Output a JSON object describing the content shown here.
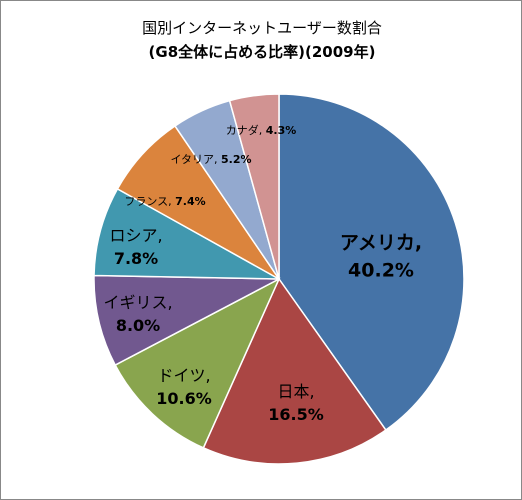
{
  "chart_data": {
    "type": "pie",
    "title": "国別インターネットユーザー数割合",
    "subtitle": "(G8全体に占める比率)(2009年)",
    "slices": [
      {
        "name": "アメリカ",
        "value": 40.2,
        "value_label": "40.2%",
        "color": "#4573A7"
      },
      {
        "name": "日本",
        "value": 16.5,
        "value_label": "16.5%",
        "color": "#AA4644"
      },
      {
        "name": "ドイツ",
        "value": 10.6,
        "value_label": "10.6%",
        "color": "#89A54E"
      },
      {
        "name": "イギリス",
        "value": 8.0,
        "value_label": "8.0%",
        "color": "#71588F"
      },
      {
        "name": "ロシア",
        "value": 7.8,
        "value_label": "7.8%",
        "color": "#4198AF"
      },
      {
        "name": "フランス",
        "value": 7.4,
        "value_label": "7.4%",
        "color": "#DB843D"
      },
      {
        "name": "イタリア",
        "value": 5.2,
        "value_label": "5.2%",
        "color": "#93A9CF"
      },
      {
        "name": "カナダ",
        "value": 4.3,
        "value_label": "4.3%",
        "color": "#D19392"
      }
    ],
    "start_angle": "12 o'clock",
    "direction": "clockwise",
    "legend": "none",
    "grid": false
  }
}
